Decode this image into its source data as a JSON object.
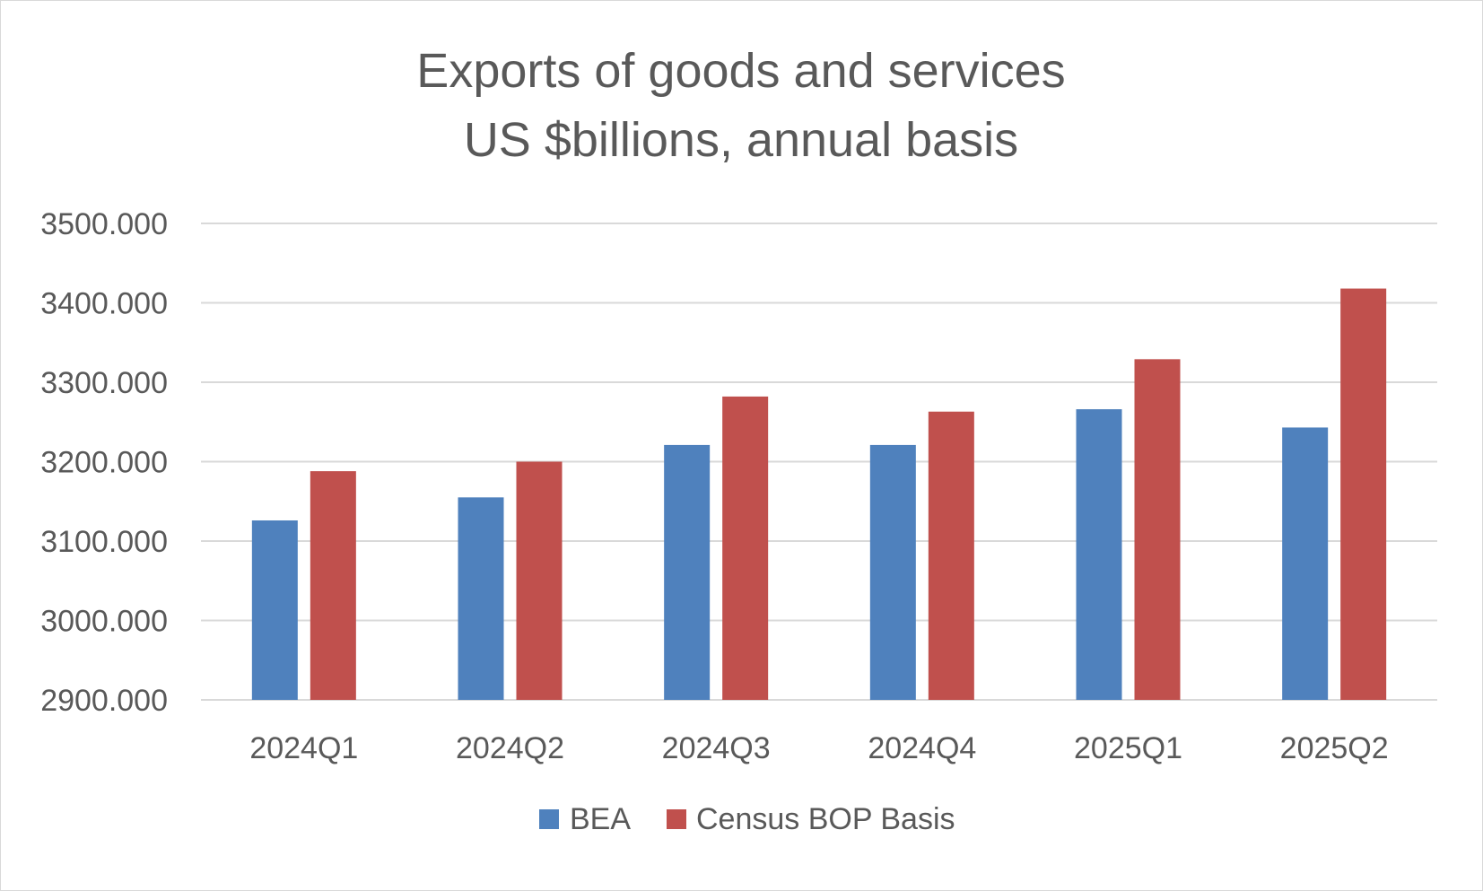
{
  "chart_data": {
    "type": "bar",
    "title_lines": [
      "Exports of goods and services",
      "US $billions, annual basis"
    ],
    "categories": [
      "2024Q1",
      "2024Q2",
      "2024Q3",
      "2024Q4",
      "2025Q1",
      "2025Q2"
    ],
    "series": [
      {
        "name": "BEA",
        "color": "#4f81bd",
        "values": [
          3126,
          3155,
          3221,
          3221,
          3266,
          3243
        ]
      },
      {
        "name": "Census BOP Basis",
        "color": "#c0504d",
        "values": [
          3188,
          3200,
          3282,
          3263,
          3329,
          3418
        ]
      }
    ],
    "yticks": [
      "2900.000",
      "3000.000",
      "3100.000",
      "3200.000",
      "3300.000",
      "3400.000",
      "3500.000"
    ],
    "ylim": [
      2900,
      3500
    ],
    "xlabel": "",
    "ylabel": "",
    "legend_position": "bottom",
    "grid": true
  }
}
